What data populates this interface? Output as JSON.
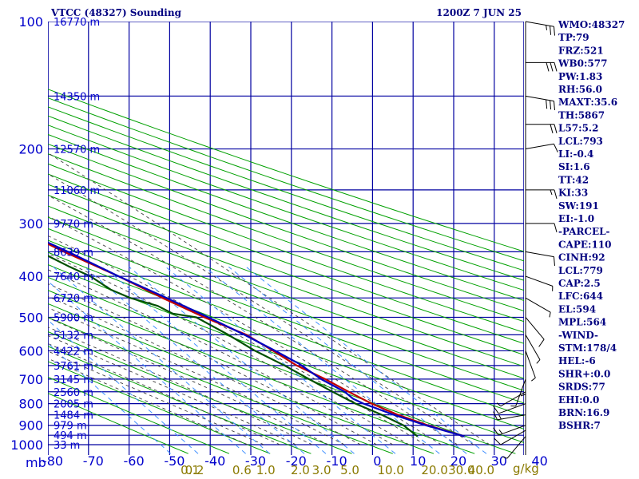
{
  "header": {
    "station": "VTCC (48327) Sounding",
    "time": "1200Z  7 JUN 25"
  },
  "indices": [
    "WMO:48327",
    "TP:79",
    "FRZ:521",
    "WB0:577",
    "PW:1.83",
    "RH:56.0",
    "MAXT:35.6",
    "TH:5867",
    "L57:5.2",
    "LCL:793",
    "LI:-0.4",
    "SI:1.6",
    "TT:42",
    "KI:33",
    "SW:191",
    "EI:-1.0",
    "-PARCEL-",
    "CAPE:110",
    "CINH:92",
    "LCL:779",
    "CAP:2.5",
    "LFC:644",
    "EL:594",
    "MPL:564",
    "-WIND-",
    "STM:178/4",
    "HEL:-6",
    "SHR+:0.0",
    "SRDS:77",
    "EHI:0.0",
    "BRN:16.9",
    "BSHR:7"
  ],
  "colors": {
    "grid": "#0000a0",
    "dry_adiabat": "#00a000",
    "moist_adiabat": "#404040",
    "mixing_ratio": "#4090ff",
    "temperature": "#c00000",
    "dewpoint": "#005000",
    "parcel": "#0000c0",
    "label": "#0000cc",
    "mixratio_label": "#8a7a00",
    "text": "#000080"
  },
  "chart_data": {
    "type": "skew-t",
    "ylabel": "mb",
    "xunit": "g/kg",
    "pressure_ticks": [
      100,
      200,
      300,
      400,
      500,
      600,
      700,
      800,
      900,
      1000
    ],
    "pressure_lines": [
      100,
      150,
      200,
      250,
      300,
      350,
      400,
      450,
      500,
      550,
      600,
      650,
      700,
      750,
      800,
      850,
      900,
      950,
      1000
    ],
    "height_labels": [
      {
        "p": 100,
        "h": "16770 m"
      },
      {
        "p": 150,
        "h": "14350 m"
      },
      {
        "p": 200,
        "h": "12570 m"
      },
      {
        "p": 250,
        "h": "11060 m"
      },
      {
        "p": 300,
        "h": "9770 m"
      },
      {
        "p": 350,
        "h": "8639 m"
      },
      {
        "p": 400,
        "h": "7640 m"
      },
      {
        "p": 450,
        "h": "6720 m"
      },
      {
        "p": 500,
        "h": "5900 m"
      },
      {
        "p": 550,
        "h": "5132 m"
      },
      {
        "p": 600,
        "h": "4422 m"
      },
      {
        "p": 650,
        "h": "3761 m"
      },
      {
        "p": 700,
        "h": "3145 m"
      },
      {
        "p": 750,
        "h": "2560 m"
      },
      {
        "p": 800,
        "h": "2005 m"
      },
      {
        "p": 850,
        "h": "1484 m"
      },
      {
        "p": 900,
        "h": "979 m"
      },
      {
        "p": 950,
        "h": "494 m"
      },
      {
        "p": 1000,
        "h": "33 m"
      }
    ],
    "temperature_ticks": [
      -80,
      -70,
      -60,
      -50,
      -40,
      -30,
      -20,
      -10,
      0,
      10,
      20,
      30,
      40
    ],
    "mixing_ratio_ticks": [
      "0.1",
      "0.2",
      "0.6",
      "1.0",
      "2.0",
      "3.0",
      "5.0",
      "10.0",
      "20.0",
      "30.0",
      "40.0"
    ],
    "mixing_ratio_values": [
      0.1,
      0.2,
      0.6,
      1.0,
      2.0,
      3.0,
      5.0,
      10.0,
      20.0,
      30.0,
      40.0
    ],
    "series": [
      {
        "key": "temperature",
        "points": [
          [
            956,
            35.6
          ],
          [
            900,
            29
          ],
          [
            850,
            24
          ],
          [
            800,
            20
          ],
          [
            750,
            17
          ],
          [
            700,
            14
          ],
          [
            650,
            10
          ],
          [
            600,
            7.5
          ],
          [
            550,
            4.5
          ],
          [
            500,
            -2
          ],
          [
            450,
            -8
          ],
          [
            400,
            -14
          ],
          [
            350,
            -22
          ],
          [
            300,
            -30
          ],
          [
            250,
            -41
          ],
          [
            200,
            -52
          ],
          [
            150,
            -66
          ],
          [
            100,
            -80
          ]
        ]
      },
      {
        "key": "dewpoint",
        "points": [
          [
            956,
            24
          ],
          [
            900,
            23
          ],
          [
            850,
            20
          ],
          [
            800,
            16
          ],
          [
            750,
            13
          ],
          [
            700,
            10
          ],
          [
            650,
            7
          ],
          [
            600,
            3
          ],
          [
            550,
            0
          ],
          [
            500,
            -4
          ],
          [
            490,
            -9
          ],
          [
            470,
            -11
          ],
          [
            450,
            -16
          ],
          [
            430,
            -19
          ],
          [
            400,
            -21
          ],
          [
            380,
            -24
          ],
          [
            350,
            -28
          ],
          [
            330,
            -31
          ],
          [
            300,
            -36
          ],
          [
            280,
            -40
          ],
          [
            250,
            -47
          ],
          [
            235,
            -49
          ],
          [
            220,
            -54
          ],
          [
            200,
            -63
          ],
          [
            180,
            -68
          ],
          [
            160,
            -73
          ],
          [
            140,
            -80
          ],
          [
            100,
            -100
          ]
        ]
      },
      {
        "key": "parcel",
        "points": [
          [
            956,
            35.6
          ],
          [
            900,
            28.5
          ],
          [
            850,
            23
          ],
          [
            800,
            18
          ],
          [
            779,
            16.5
          ],
          [
            750,
            16
          ],
          [
            700,
            13
          ],
          [
            644,
            11
          ],
          [
            600,
            8
          ],
          [
            550,
            4
          ],
          [
            500,
            -1
          ],
          [
            450,
            -7
          ],
          [
            400,
            -14
          ],
          [
            350,
            -21
          ],
          [
            300,
            -30
          ],
          [
            250,
            -40
          ],
          [
            200,
            -53
          ],
          [
            150,
            -68
          ],
          [
            100,
            -84
          ]
        ]
      }
    ],
    "wind_barbs": [
      {
        "p": 956,
        "dir": 220,
        "spd": 5
      },
      {
        "p": 925,
        "dir": 240,
        "spd": 10
      },
      {
        "p": 900,
        "dir": 250,
        "spd": 15
      },
      {
        "p": 850,
        "dir": 260,
        "spd": 15
      },
      {
        "p": 800,
        "dir": 250,
        "spd": 10
      },
      {
        "p": 750,
        "dir": 240,
        "spd": 5
      },
      {
        "p": 700,
        "dir": 200,
        "spd": 5
      },
      {
        "p": 650,
        "dir": 180,
        "spd": 5
      },
      {
        "p": 600,
        "dir": 160,
        "spd": 5
      },
      {
        "p": 550,
        "dir": 150,
        "spd": 5
      },
      {
        "p": 500,
        "dir": 140,
        "spd": 10
      },
      {
        "p": 450,
        "dir": 120,
        "spd": 5
      },
      {
        "p": 400,
        "dir": 110,
        "spd": 5
      },
      {
        "p": 350,
        "dir": 100,
        "spd": 10
      },
      {
        "p": 300,
        "dir": 90,
        "spd": 10
      },
      {
        "p": 250,
        "dir": 90,
        "spd": 15
      },
      {
        "p": 200,
        "dir": 80,
        "spd": 10
      },
      {
        "p": 175,
        "dir": 90,
        "spd": 20
      },
      {
        "p": 150,
        "dir": 100,
        "spd": 30
      },
      {
        "p": 125,
        "dir": 90,
        "spd": 30
      },
      {
        "p": 100,
        "dir": 100,
        "spd": 25
      }
    ]
  }
}
